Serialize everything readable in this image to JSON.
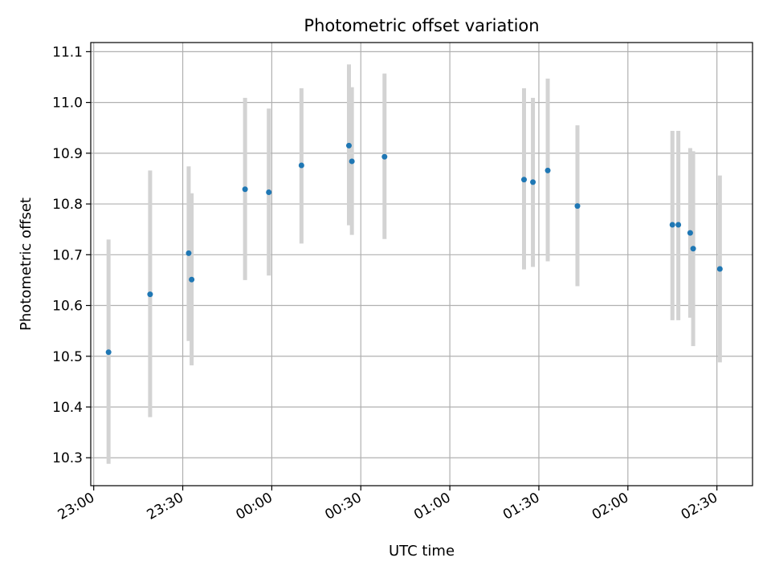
{
  "chart_data": {
    "type": "scatter",
    "title": "Photometric offset variation",
    "xlabel": "UTC time",
    "ylabel": "Photometric offset",
    "xlim": [
      "22:59",
      "02:42"
    ],
    "ylim": [
      10.245,
      11.118
    ],
    "x_ticks": [
      "23:00",
      "23:30",
      "00:00",
      "00:30",
      "01:00",
      "01:30",
      "02:00",
      "02:30"
    ],
    "y_ticks": [
      "10.3",
      "10.4",
      "10.5",
      "10.6",
      "10.7",
      "10.8",
      "10.9",
      "11.0",
      "11.1"
    ],
    "grid": true,
    "colors": {
      "point": "#1f77b4",
      "errorbar": "#d3d3d3",
      "grid": "#b0b0b0"
    },
    "points": [
      {
        "x": "23:05",
        "y": 10.508,
        "low": 10.288,
        "high": 10.73
      },
      {
        "x": "23:19",
        "y": 10.622,
        "low": 10.38,
        "high": 10.866
      },
      {
        "x": "23:32",
        "y": 10.703,
        "low": 10.53,
        "high": 10.874
      },
      {
        "x": "23:33",
        "y": 10.651,
        "low": 10.482,
        "high": 10.821
      },
      {
        "x": "23:51",
        "y": 10.829,
        "low": 10.65,
        "high": 11.009
      },
      {
        "x": "23:59",
        "y": 10.823,
        "low": 10.659,
        "high": 10.988
      },
      {
        "x": "00:10",
        "y": 10.876,
        "low": 10.722,
        "high": 11.028
      },
      {
        "x": "00:26",
        "y": 10.915,
        "low": 10.758,
        "high": 11.075
      },
      {
        "x": "00:27",
        "y": 10.884,
        "low": 10.739,
        "high": 11.03
      },
      {
        "x": "00:38",
        "y": 10.893,
        "low": 10.731,
        "high": 11.057
      },
      {
        "x": "01:25",
        "y": 10.848,
        "low": 10.671,
        "high": 11.028
      },
      {
        "x": "01:28",
        "y": 10.843,
        "low": 10.676,
        "high": 11.009
      },
      {
        "x": "01:33",
        "y": 10.866,
        "low": 10.687,
        "high": 11.047
      },
      {
        "x": "01:43",
        "y": 10.796,
        "low": 10.638,
        "high": 10.955
      },
      {
        "x": "02:15",
        "y": 10.759,
        "low": 10.571,
        "high": 10.944
      },
      {
        "x": "02:17",
        "y": 10.759,
        "low": 10.571,
        "high": 10.944
      },
      {
        "x": "02:21",
        "y": 10.743,
        "low": 10.576,
        "high": 10.91
      },
      {
        "x": "02:22",
        "y": 10.712,
        "low": 10.52,
        "high": 10.904
      },
      {
        "x": "02:31",
        "y": 10.672,
        "low": 10.488,
        "high": 10.856
      }
    ]
  }
}
